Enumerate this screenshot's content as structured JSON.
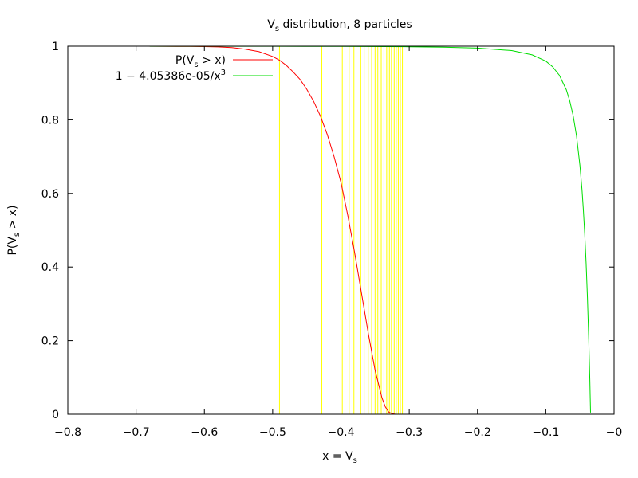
{
  "chart_data": {
    "type": "line",
    "title": {
      "prefix": "V",
      "sub": "s",
      "suffix": " distribution, 8 particles"
    },
    "xlabel": {
      "prefix": "x = V",
      "sub": "s",
      "suffix": ""
    },
    "ylabel": {
      "prefix": "P(V",
      "sub": "s",
      "suffix": " > x)"
    },
    "xlim": [
      -0.8,
      0
    ],
    "ylim": [
      0,
      1
    ],
    "x_ticks": [
      {
        "value": -0.8,
        "label": "−0.8"
      },
      {
        "value": -0.7,
        "label": "−0.7"
      },
      {
        "value": -0.6,
        "label": "−0.6"
      },
      {
        "value": -0.5,
        "label": "−0.5"
      },
      {
        "value": -0.4,
        "label": "−0.4"
      },
      {
        "value": -0.3,
        "label": "−0.3"
      },
      {
        "value": -0.2,
        "label": "−0.2"
      },
      {
        "value": -0.1,
        "label": "−0.1"
      },
      {
        "value": 0,
        "label": "−0"
      }
    ],
    "y_ticks": [
      {
        "value": 0,
        "label": "0"
      },
      {
        "value": 0.2,
        "label": "0.2"
      },
      {
        "value": 0.4,
        "label": "0.4"
      },
      {
        "value": 0.6,
        "label": "0.6"
      },
      {
        "value": 0.8,
        "label": "0.8"
      },
      {
        "value": 1,
        "label": "1"
      }
    ],
    "legend_position": "top-left",
    "series": [
      {
        "legend": {
          "prefix": "P(V",
          "sub": "s",
          "suffix": " > x)",
          "sup": "",
          "after": ""
        },
        "color": "#ff0000",
        "x": [
          -0.684,
          -0.66,
          -0.64,
          -0.62,
          -0.6,
          -0.58,
          -0.56,
          -0.54,
          -0.52,
          -0.5,
          -0.49,
          -0.48,
          -0.47,
          -0.46,
          -0.45,
          -0.44,
          -0.43,
          -0.42,
          -0.41,
          -0.4,
          -0.39,
          -0.38,
          -0.37,
          -0.36,
          -0.35,
          -0.34,
          -0.335,
          -0.33,
          -0.325,
          -0.32
        ],
        "y": [
          0.9999,
          0.9998,
          0.9996,
          0.9993,
          0.9989,
          0.998,
          0.996,
          0.992,
          0.985,
          0.972,
          0.962,
          0.948,
          0.93,
          0.91,
          0.883,
          0.85,
          0.81,
          0.76,
          0.7,
          0.63,
          0.54,
          0.44,
          0.33,
          0.22,
          0.12,
          0.045,
          0.02,
          0.006,
          0.0015,
          0.0
        ]
      },
      {
        "legend": {
          "prefix": "1 − 4.05386e-05/x",
          "sub": "",
          "suffix": "",
          "sup": "3",
          "after": ""
        },
        "color": "#00dd00",
        "x": [
          -0.68,
          -0.5,
          -0.4,
          -0.3,
          -0.25,
          -0.2,
          -0.15,
          -0.12,
          -0.1,
          -0.09,
          -0.08,
          -0.07,
          -0.065,
          -0.06,
          -0.055,
          -0.05,
          -0.047,
          -0.045,
          -0.043,
          -0.041,
          -0.039,
          -0.037,
          -0.0355,
          -0.0344
        ],
        "y": [
          0.99987,
          0.99968,
          0.99937,
          0.9985,
          0.9974,
          0.9949,
          0.988,
          0.9765,
          0.9595,
          0.9444,
          0.9208,
          0.8818,
          0.8524,
          0.8123,
          0.7563,
          0.6757,
          0.6095,
          0.5548,
          0.4902,
          0.4118,
          0.3167,
          0.1997,
          0.0939,
          0.0045
        ]
      }
    ],
    "samples": {
      "color": "#ffff00",
      "x": [
        -0.49,
        -0.428,
        -0.398,
        -0.388,
        -0.381,
        -0.371,
        -0.366,
        -0.36,
        -0.355,
        -0.35,
        -0.346,
        -0.341,
        -0.337,
        -0.333,
        -0.329,
        -0.326,
        -0.322,
        -0.319,
        -0.316,
        -0.313,
        -0.31
      ]
    }
  }
}
